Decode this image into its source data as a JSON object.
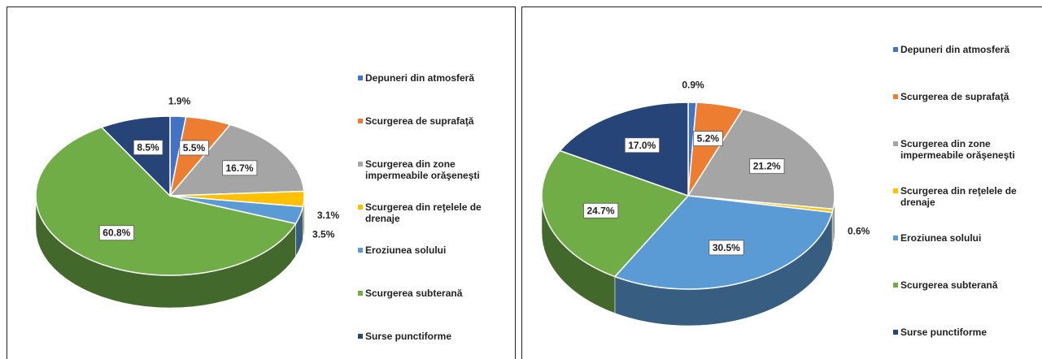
{
  "chart_data": [
    {
      "type": "pie",
      "categories": [
        "Depuneri din atmosferă",
        "Scurgerea de suprafaţă",
        "Scurgerea din zone impermeabile orăşeneşti",
        "Scurgerea din reţelele de drenaje",
        "Eroziunea solului",
        "Scurgerea subterană",
        "Surse punctiforme"
      ],
      "values": [
        1.9,
        5.5,
        16.7,
        3.1,
        3.5,
        60.8,
        8.5
      ],
      "value_labels": [
        "1.9%",
        "5.5%",
        "16.7%",
        "3.1%",
        "3.5%",
        "60.8%",
        "8.5%"
      ],
      "colors": [
        "#4472c4",
        "#ed7d31",
        "#a5a5a5",
        "#ffc000",
        "#5b9bd5",
        "#70ad47",
        "#264478"
      ],
      "legend": "right"
    },
    {
      "type": "pie",
      "categories": [
        "Depuneri din atmosferă",
        "Scurgerea de suprafaţă",
        "Scurgerea din zone impermeabile orăşeneşti",
        "Scurgerea din reţelele de drenaje",
        "Eroziunea solului",
        "Scurgerea subterană",
        "Surse punctiforme"
      ],
      "values": [
        0.9,
        5.2,
        21.2,
        0.6,
        30.5,
        24.7,
        17.0
      ],
      "value_labels": [
        "0.9%",
        "5.2%",
        "21.2%",
        "0.6%",
        "30.5%",
        "24.7%",
        "17.0%"
      ],
      "colors": [
        "#4472c4",
        "#ed7d31",
        "#a5a5a5",
        "#ffc000",
        "#5b9bd5",
        "#70ad47",
        "#264478"
      ],
      "legend": "right"
    }
  ]
}
